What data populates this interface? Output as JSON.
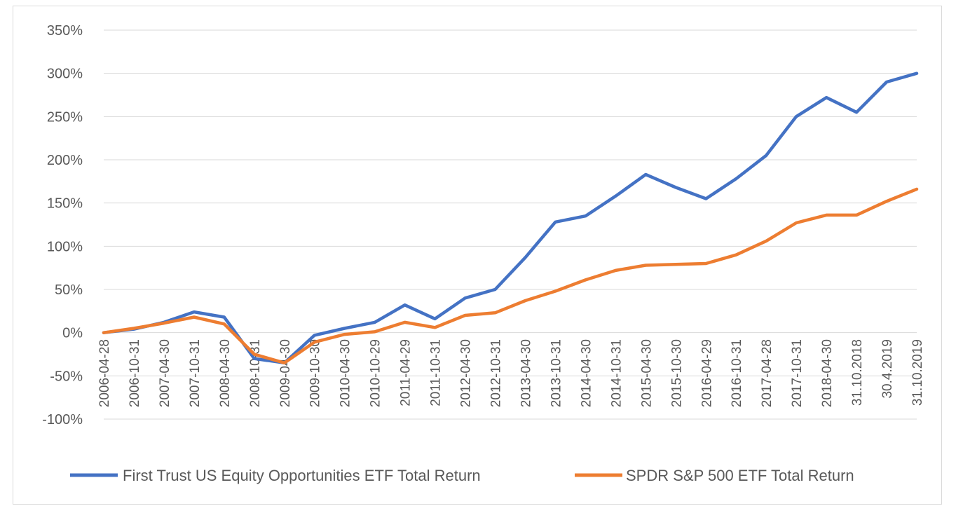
{
  "chart_data": {
    "type": "line",
    "title": "",
    "xlabel": "",
    "ylabel": "",
    "ylim": [
      -100,
      350
    ],
    "yticks": [
      -100,
      -50,
      0,
      50,
      100,
      150,
      200,
      250,
      300,
      350
    ],
    "ytick_labels": [
      "-100%",
      "-50%",
      "0%",
      "50%",
      "100%",
      "150%",
      "200%",
      "250%",
      "300%",
      "350%"
    ],
    "x_tick_labels": [
      "2006-04-28",
      "2006-10-31",
      "2007-04-30",
      "2007-10-31",
      "2008-04-30",
      "2008-10-31",
      "2009-04-30",
      "2009-10-30",
      "2010-04-30",
      "2010-10-29",
      "2011-04-29",
      "2011-10-31",
      "2012-04-30",
      "2012-10-31",
      "2013-04-30",
      "2013-10-31",
      "2014-04-30",
      "2014-10-31",
      "2015-04-30",
      "2015-10-30",
      "2016-04-29",
      "2016-10-31",
      "2017-04-28",
      "2017-10-31",
      "2018-04-30",
      "31.10.2018",
      "30.4.2019",
      "31.10.2019"
    ],
    "grid": true,
    "legend_position": "bottom",
    "x_index": [
      0,
      1,
      2,
      3,
      4,
      5,
      6,
      7,
      8,
      9,
      10,
      11,
      12,
      13,
      14,
      15,
      16,
      17,
      18,
      19,
      20,
      21,
      22,
      23,
      24,
      25,
      26,
      27
    ],
    "series": [
      {
        "name": "First Trust US Equity Opportunities ETF Total Return",
        "color": "#4472C4",
        "values": [
          0,
          4,
          12,
          24,
          18,
          -30,
          -35,
          -3,
          5,
          12,
          32,
          16,
          40,
          50,
          87,
          128,
          135,
          158,
          183,
          168,
          155,
          178,
          205,
          250,
          272,
          255,
          290,
          300
        ]
      },
      {
        "name": "SPDR S&P 500 ETF Total Return",
        "color": "#ED7D31",
        "values": [
          0,
          5,
          11,
          18,
          10,
          -25,
          -35,
          -11,
          -2,
          1,
          12,
          6,
          20,
          23,
          37,
          48,
          61,
          72,
          78,
          79,
          80,
          90,
          106,
          127,
          136,
          136,
          152,
          166
        ]
      }
    ]
  }
}
